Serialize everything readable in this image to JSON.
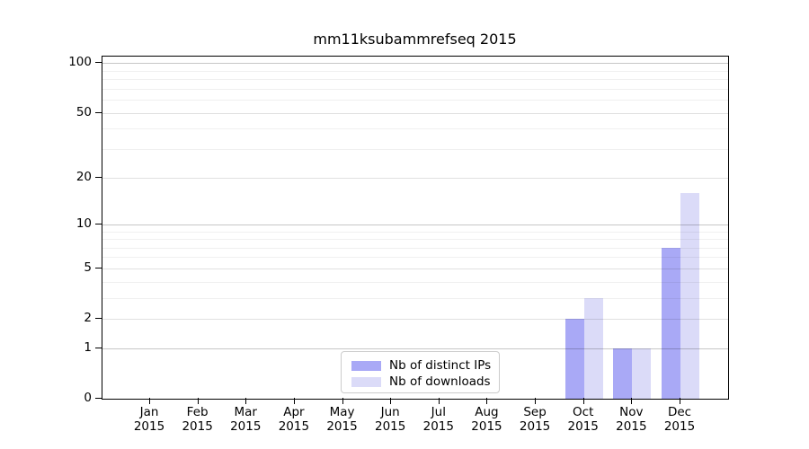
{
  "chart_data": {
    "type": "bar",
    "title": "mm11ksubammrefseq 2015",
    "categories": [
      "Jan",
      "Feb",
      "Mar",
      "Apr",
      "May",
      "Jun",
      "Jul",
      "Aug",
      "Sep",
      "Oct",
      "Nov",
      "Dec"
    ],
    "category_year": "2015",
    "series": [
      {
        "name": "Nb of distinct IPs",
        "color": "#a9a9f6",
        "values": [
          0,
          0,
          0,
          0,
          0,
          0,
          0,
          0,
          0,
          2,
          1,
          7
        ]
      },
      {
        "name": "Nb of downloads",
        "color": "#dbdbf8",
        "values": [
          0,
          0,
          0,
          0,
          0,
          0,
          0,
          0,
          0,
          3,
          1,
          16
        ]
      }
    ],
    "yscale": "log1p",
    "yticks": [
      0,
      1,
      2,
      5,
      10,
      20,
      50,
      100
    ],
    "yticks_minor": [
      3,
      4,
      6,
      7,
      8,
      9,
      30,
      40,
      60,
      70,
      80,
      90
    ],
    "ylim": [
      0,
      110
    ],
    "xlabel": "",
    "ylabel": "",
    "grid": "both",
    "legend_position": "lower-center",
    "grid_colors": {
      "decade": "rgba(0,0,0,0.22)",
      "major": "rgba(0,0,0,0.12)",
      "minor": "rgba(0,0,0,0.06)"
    }
  }
}
